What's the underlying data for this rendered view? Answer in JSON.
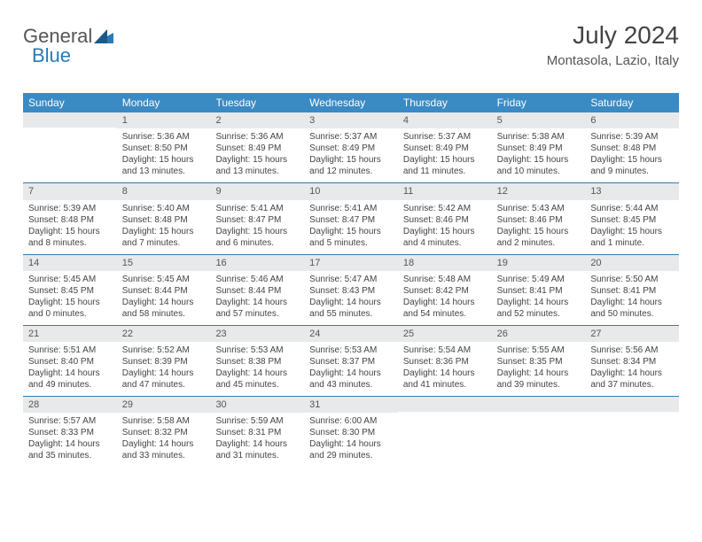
{
  "logo": {
    "part1": "General",
    "part2": "Blue"
  },
  "title": "July 2024",
  "location": "Montasola, Lazio, Italy",
  "dow_bg": "#3a8ac4",
  "daynum_bg": "#e8e9ea",
  "week_border": "#3a7aa8",
  "dayNames": [
    "Sunday",
    "Monday",
    "Tuesday",
    "Wednesday",
    "Thursday",
    "Friday",
    "Saturday"
  ],
  "weeks": [
    [
      {
        "num": "",
        "lines": []
      },
      {
        "num": "1",
        "lines": [
          "Sunrise: 5:36 AM",
          "Sunset: 8:50 PM",
          "Daylight: 15 hours",
          "and 13 minutes."
        ]
      },
      {
        "num": "2",
        "lines": [
          "Sunrise: 5:36 AM",
          "Sunset: 8:49 PM",
          "Daylight: 15 hours",
          "and 13 minutes."
        ]
      },
      {
        "num": "3",
        "lines": [
          "Sunrise: 5:37 AM",
          "Sunset: 8:49 PM",
          "Daylight: 15 hours",
          "and 12 minutes."
        ]
      },
      {
        "num": "4",
        "lines": [
          "Sunrise: 5:37 AM",
          "Sunset: 8:49 PM",
          "Daylight: 15 hours",
          "and 11 minutes."
        ]
      },
      {
        "num": "5",
        "lines": [
          "Sunrise: 5:38 AM",
          "Sunset: 8:49 PM",
          "Daylight: 15 hours",
          "and 10 minutes."
        ]
      },
      {
        "num": "6",
        "lines": [
          "Sunrise: 5:39 AM",
          "Sunset: 8:48 PM",
          "Daylight: 15 hours",
          "and 9 minutes."
        ]
      }
    ],
    [
      {
        "num": "7",
        "lines": [
          "Sunrise: 5:39 AM",
          "Sunset: 8:48 PM",
          "Daylight: 15 hours",
          "and 8 minutes."
        ]
      },
      {
        "num": "8",
        "lines": [
          "Sunrise: 5:40 AM",
          "Sunset: 8:48 PM",
          "Daylight: 15 hours",
          "and 7 minutes."
        ]
      },
      {
        "num": "9",
        "lines": [
          "Sunrise: 5:41 AM",
          "Sunset: 8:47 PM",
          "Daylight: 15 hours",
          "and 6 minutes."
        ]
      },
      {
        "num": "10",
        "lines": [
          "Sunrise: 5:41 AM",
          "Sunset: 8:47 PM",
          "Daylight: 15 hours",
          "and 5 minutes."
        ]
      },
      {
        "num": "11",
        "lines": [
          "Sunrise: 5:42 AM",
          "Sunset: 8:46 PM",
          "Daylight: 15 hours",
          "and 4 minutes."
        ]
      },
      {
        "num": "12",
        "lines": [
          "Sunrise: 5:43 AM",
          "Sunset: 8:46 PM",
          "Daylight: 15 hours",
          "and 2 minutes."
        ]
      },
      {
        "num": "13",
        "lines": [
          "Sunrise: 5:44 AM",
          "Sunset: 8:45 PM",
          "Daylight: 15 hours",
          "and 1 minute."
        ]
      }
    ],
    [
      {
        "num": "14",
        "lines": [
          "Sunrise: 5:45 AM",
          "Sunset: 8:45 PM",
          "Daylight: 15 hours",
          "and 0 minutes."
        ]
      },
      {
        "num": "15",
        "lines": [
          "Sunrise: 5:45 AM",
          "Sunset: 8:44 PM",
          "Daylight: 14 hours",
          "and 58 minutes."
        ]
      },
      {
        "num": "16",
        "lines": [
          "Sunrise: 5:46 AM",
          "Sunset: 8:44 PM",
          "Daylight: 14 hours",
          "and 57 minutes."
        ]
      },
      {
        "num": "17",
        "lines": [
          "Sunrise: 5:47 AM",
          "Sunset: 8:43 PM",
          "Daylight: 14 hours",
          "and 55 minutes."
        ]
      },
      {
        "num": "18",
        "lines": [
          "Sunrise: 5:48 AM",
          "Sunset: 8:42 PM",
          "Daylight: 14 hours",
          "and 54 minutes."
        ]
      },
      {
        "num": "19",
        "lines": [
          "Sunrise: 5:49 AM",
          "Sunset: 8:41 PM",
          "Daylight: 14 hours",
          "and 52 minutes."
        ]
      },
      {
        "num": "20",
        "lines": [
          "Sunrise: 5:50 AM",
          "Sunset: 8:41 PM",
          "Daylight: 14 hours",
          "and 50 minutes."
        ]
      }
    ],
    [
      {
        "num": "21",
        "lines": [
          "Sunrise: 5:51 AM",
          "Sunset: 8:40 PM",
          "Daylight: 14 hours",
          "and 49 minutes."
        ]
      },
      {
        "num": "22",
        "lines": [
          "Sunrise: 5:52 AM",
          "Sunset: 8:39 PM",
          "Daylight: 14 hours",
          "and 47 minutes."
        ]
      },
      {
        "num": "23",
        "lines": [
          "Sunrise: 5:53 AM",
          "Sunset: 8:38 PM",
          "Daylight: 14 hours",
          "and 45 minutes."
        ]
      },
      {
        "num": "24",
        "lines": [
          "Sunrise: 5:53 AM",
          "Sunset: 8:37 PM",
          "Daylight: 14 hours",
          "and 43 minutes."
        ]
      },
      {
        "num": "25",
        "lines": [
          "Sunrise: 5:54 AM",
          "Sunset: 8:36 PM",
          "Daylight: 14 hours",
          "and 41 minutes."
        ]
      },
      {
        "num": "26",
        "lines": [
          "Sunrise: 5:55 AM",
          "Sunset: 8:35 PM",
          "Daylight: 14 hours",
          "and 39 minutes."
        ]
      },
      {
        "num": "27",
        "lines": [
          "Sunrise: 5:56 AM",
          "Sunset: 8:34 PM",
          "Daylight: 14 hours",
          "and 37 minutes."
        ]
      }
    ],
    [
      {
        "num": "28",
        "lines": [
          "Sunrise: 5:57 AM",
          "Sunset: 8:33 PM",
          "Daylight: 14 hours",
          "and 35 minutes."
        ]
      },
      {
        "num": "29",
        "lines": [
          "Sunrise: 5:58 AM",
          "Sunset: 8:32 PM",
          "Daylight: 14 hours",
          "and 33 minutes."
        ]
      },
      {
        "num": "30",
        "lines": [
          "Sunrise: 5:59 AM",
          "Sunset: 8:31 PM",
          "Daylight: 14 hours",
          "and 31 minutes."
        ]
      },
      {
        "num": "31",
        "lines": [
          "Sunrise: 6:00 AM",
          "Sunset: 8:30 PM",
          "Daylight: 14 hours",
          "and 29 minutes."
        ]
      },
      {
        "num": "",
        "lines": []
      },
      {
        "num": "",
        "lines": []
      },
      {
        "num": "",
        "lines": []
      }
    ]
  ]
}
